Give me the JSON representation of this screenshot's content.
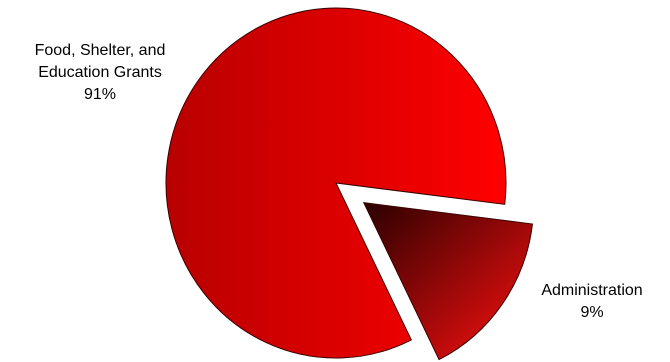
{
  "chart_data": {
    "type": "pie",
    "slices": [
      {
        "label_lines": [
          "Food, Shelter, and",
          "Education Grants"
        ],
        "percent_label": "91%",
        "value": 91,
        "color": "#e00000",
        "exploded": false
      },
      {
        "label_lines": [
          "Administration"
        ],
        "percent_label": "9%",
        "value": 9,
        "color": "#c00000",
        "exploded": true
      }
    ],
    "colors": {
      "main_gradient_dark": "#b80000",
      "main_gradient_light": "#ff0000",
      "admin_gradient_dark": "#2a0000",
      "admin_gradient_light": "#ff1010",
      "edge": "#3a0000"
    }
  }
}
